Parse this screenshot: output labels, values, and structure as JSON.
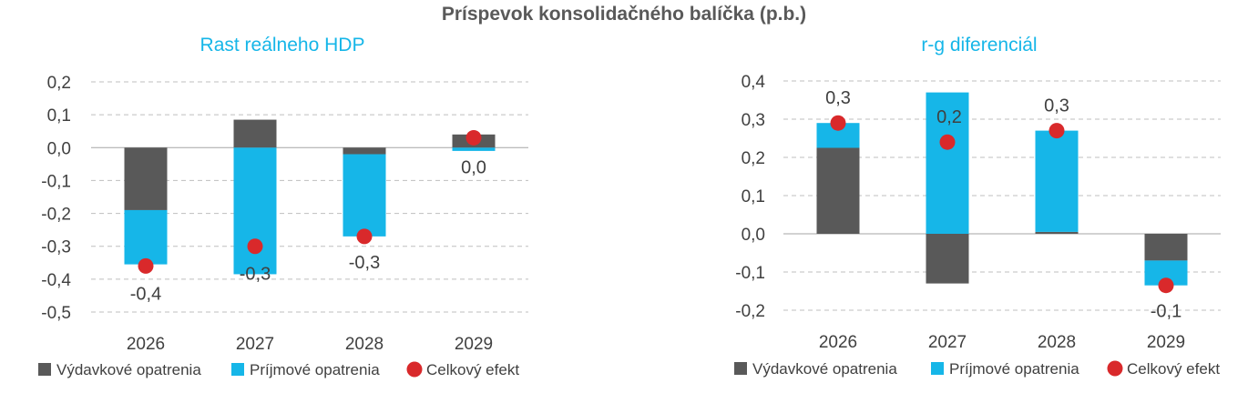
{
  "page_title": "Príspevok konsolidačného balíčka (p.b.)",
  "colors": {
    "expenditure": "#595959",
    "revenue": "#16b6e8",
    "total": "#d9292b",
    "grid": "#bfbfbf",
    "subtitle": "#16b6e8"
  },
  "chart_data": [
    {
      "type": "bar",
      "stacked": true,
      "title": "Rast reálneho HDP",
      "categories": [
        "2026",
        "2027",
        "2028",
        "2029"
      ],
      "ylim": [
        -0.5,
        0.2
      ],
      "yticks": [
        "0,2",
        "0,1",
        "0,0",
        "-0,1",
        "-0,2",
        "-0,3",
        "-0,4",
        "-0,5"
      ],
      "series": [
        {
          "name": "Výdavkové opatrenia",
          "kind": "bar",
          "values": [
            -0.19,
            0.085,
            -0.02,
            0.04
          ]
        },
        {
          "name": "Príjmové opatrenia",
          "kind": "bar",
          "values": [
            -0.165,
            -0.385,
            -0.25,
            -0.01
          ]
        },
        {
          "name": "Celkový efekt",
          "kind": "marker",
          "values": [
            -0.36,
            -0.3,
            -0.27,
            0.03
          ]
        }
      ],
      "data_labels": [
        "-0,4",
        "-0,3",
        "-0,3",
        "0,0"
      ],
      "grid": true,
      "legend": "bottom"
    },
    {
      "type": "bar",
      "stacked": true,
      "title": "r-g diferenciál",
      "categories": [
        "2026",
        "2027",
        "2028",
        "2029"
      ],
      "ylim": [
        -0.2,
        0.4
      ],
      "yticks": [
        "0,4",
        "0,3",
        "0,2",
        "0,1",
        "0,0",
        "-0,1",
        "-0,2"
      ],
      "series": [
        {
          "name": "Výdavkové opatrenia",
          "kind": "bar",
          "values": [
            0.225,
            -0.13,
            0.005,
            -0.07
          ]
        },
        {
          "name": "Príjmové opatrenia",
          "kind": "bar",
          "values": [
            0.065,
            0.37,
            0.265,
            -0.065
          ]
        },
        {
          "name": "Celkový efekt",
          "kind": "marker",
          "values": [
            0.29,
            0.24,
            0.27,
            -0.135
          ]
        }
      ],
      "data_labels": [
        "0,3",
        "0,2",
        "0,3",
        "-0,1"
      ],
      "grid": true,
      "legend": "bottom"
    }
  ]
}
